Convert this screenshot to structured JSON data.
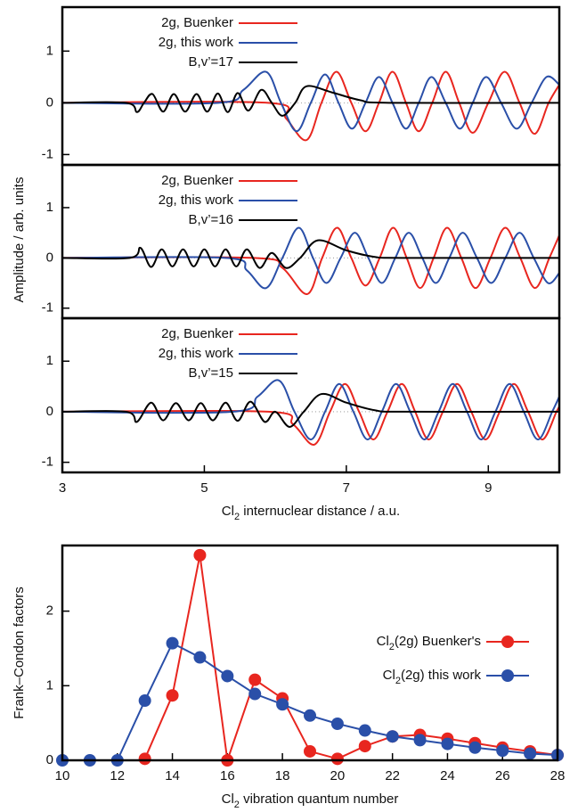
{
  "chart_data": [
    {
      "type": "line",
      "ylabel": "Amplitude / arb. units",
      "xlim": [
        3,
        10
      ],
      "ylim": [
        -1.2,
        1.85
      ],
      "yticks": [
        -1,
        0,
        1
      ],
      "legend": "top-left",
      "series": [
        {
          "name": "2g, Buenker",
          "color": "#e8261f",
          "x": [
            3,
            5.9,
            6.15,
            6.44,
            6.65,
            6.86,
            7.07,
            7.27,
            7.46,
            7.65,
            7.84,
            8.02,
            8.21,
            8.4,
            8.59,
            8.78,
            9.0,
            9.23,
            9.44,
            9.65,
            9.85,
            10
          ],
          "values": [
            0,
            0,
            -0.3,
            -0.72,
            0,
            0.6,
            0,
            -0.55,
            0,
            0.6,
            0,
            -0.55,
            0,
            0.6,
            0,
            -0.58,
            0,
            0.6,
            0,
            -0.6,
            0,
            0.35
          ]
        },
        {
          "name": "2g, this work",
          "color": "#2a4fa8",
          "x": [
            3,
            5.2,
            5.55,
            5.87,
            6.08,
            6.3,
            6.5,
            6.7,
            6.89,
            7.08,
            7.27,
            7.46,
            7.65,
            7.84,
            8.02,
            8.2,
            8.4,
            8.6,
            8.78,
            8.97,
            9.18,
            9.4,
            9.61,
            9.82,
            10
          ],
          "values": [
            0,
            0,
            0.25,
            0.6,
            0,
            -0.55,
            0,
            0.55,
            0,
            -0.5,
            0,
            0.5,
            0,
            -0.5,
            0,
            0.5,
            0,
            -0.5,
            0,
            0.5,
            0,
            -0.5,
            0,
            0.5,
            0.35
          ]
        },
        {
          "name": "B,v’=17",
          "color": "#000000",
          "x": [
            3,
            3.9,
            4.05,
            4.15,
            4.27,
            4.42,
            4.57,
            4.73,
            4.89,
            5.04,
            5.19,
            5.33,
            5.47,
            5.62,
            5.8,
            5.95,
            6.1,
            6.28,
            6.44,
            6.8,
            7.2,
            7.6,
            10
          ],
          "values": [
            0,
            0,
            -0.18,
            0,
            0.17,
            -0.17,
            0.17,
            -0.17,
            0.17,
            -0.17,
            0.18,
            -0.18,
            0.19,
            -0.15,
            0.25,
            0,
            -0.25,
            0,
            0.32,
            0.2,
            0.05,
            0,
            0
          ]
        }
      ]
    },
    {
      "type": "line",
      "xlim": [
        3,
        10
      ],
      "ylim": [
        -1.2,
        1.85
      ],
      "yticks": [
        -1,
        0,
        1
      ],
      "legend": "top-left",
      "series": [
        {
          "name": "2g, Buenker",
          "color": "#e8261f",
          "x": [
            3,
            5.7,
            6.1,
            6.45,
            6.66,
            6.87,
            7.07,
            7.27,
            7.47,
            7.66,
            7.85,
            8.04,
            8.23,
            8.42,
            8.62,
            8.82,
            9.03,
            9.24,
            9.45,
            9.66,
            9.86,
            10
          ],
          "values": [
            0,
            0,
            -0.2,
            -0.72,
            0,
            0.6,
            0,
            -0.55,
            0,
            0.6,
            0,
            -0.6,
            0,
            0.6,
            0,
            -0.6,
            0,
            0.6,
            0,
            -0.6,
            0,
            0.45
          ]
        },
        {
          "name": "2g, this work",
          "color": "#2a4fa8",
          "x": [
            3,
            5.3,
            5.6,
            5.87,
            6.1,
            6.33,
            6.53,
            6.72,
            6.92,
            7.12,
            7.31,
            7.5,
            7.69,
            7.88,
            8.07,
            8.26,
            8.45,
            8.64,
            8.84,
            9.04,
            9.24,
            9.44,
            9.64,
            9.84,
            10
          ],
          "values": [
            0,
            0,
            -0.25,
            -0.6,
            0,
            0.6,
            0,
            -0.5,
            0,
            0.5,
            0,
            -0.5,
            0,
            0.5,
            0,
            -0.5,
            0,
            0.5,
            0,
            -0.5,
            0,
            0.5,
            0,
            -0.5,
            -0.3
          ]
        },
        {
          "name": "B,v’=16",
          "color": "#000000",
          "x": [
            3,
            3.95,
            4.1,
            4.25,
            4.4,
            4.55,
            4.7,
            4.85,
            5.0,
            5.15,
            5.3,
            5.45,
            5.6,
            5.78,
            5.95,
            6.15,
            6.35,
            6.6,
            7.0,
            7.4,
            7.8,
            10
          ],
          "values": [
            0,
            0,
            0.2,
            -0.18,
            0.17,
            -0.17,
            0.17,
            -0.17,
            0.17,
            -0.17,
            0.17,
            -0.17,
            0.17,
            -0.2,
            0.1,
            -0.2,
            0,
            0.35,
            0.15,
            0.02,
            0,
            0
          ]
        }
      ]
    },
    {
      "type": "line",
      "xlabel": [
        "Cl",
        "2",
        " internuclear distance / a.u."
      ],
      "xlim": [
        3,
        10
      ],
      "ylim": [
        -1.2,
        1.85
      ],
      "xticks": [
        3,
        5,
        7,
        9
      ],
      "yticks": [
        -1,
        0,
        1
      ],
      "legend": "top-left",
      "series": [
        {
          "name": "2g, Buenker",
          "color": "#e8261f",
          "x": [
            3,
            5.9,
            6.25,
            6.55,
            6.77,
            6.98,
            7.18,
            7.38,
            7.58,
            7.78,
            7.97,
            8.16,
            8.36,
            8.56,
            8.76,
            8.96,
            9.16,
            9.36,
            9.56,
            9.76,
            9.96,
            10
          ],
          "values": [
            0,
            0,
            -0.25,
            -0.65,
            0,
            0.55,
            0,
            -0.55,
            0,
            0.55,
            0,
            -0.55,
            0,
            0.55,
            0,
            -0.55,
            0,
            0.55,
            0,
            -0.55,
            0,
            0.1
          ]
        },
        {
          "name": "2g, this work",
          "color": "#2a4fa8",
          "x": [
            3,
            5.4,
            5.75,
            6.05,
            6.27,
            6.5,
            6.7,
            6.9,
            7.1,
            7.3,
            7.5,
            7.7,
            7.9,
            8.1,
            8.3,
            8.5,
            8.7,
            8.9,
            9.1,
            9.3,
            9.5,
            9.7,
            9.9,
            10
          ],
          "values": [
            0,
            0,
            0.3,
            0.62,
            0,
            -0.55,
            0,
            0.55,
            0,
            -0.55,
            0,
            0.55,
            0,
            -0.55,
            0,
            0.55,
            0,
            -0.55,
            0,
            0.55,
            0,
            -0.55,
            0,
            0.3
          ]
        },
        {
          "name": "B,v’=15",
          "color": "#000000",
          "x": [
            3,
            3.9,
            4.05,
            4.25,
            4.42,
            4.6,
            4.78,
            4.95,
            5.12,
            5.3,
            5.47,
            5.65,
            5.85,
            6.0,
            6.2,
            6.4,
            6.65,
            7.0,
            7.4,
            7.8,
            10
          ],
          "values": [
            0,
            0,
            -0.2,
            0.18,
            -0.17,
            0.17,
            -0.17,
            0.17,
            -0.17,
            0.18,
            -0.18,
            0.2,
            -0.2,
            0,
            -0.3,
            0,
            0.35,
            0.18,
            0.03,
            0,
            0
          ]
        }
      ]
    },
    {
      "type": "scatter-line",
      "xlabel": [
        "Cl",
        "2",
        " vibration quantum number"
      ],
      "ylabel": "Frank–Condon factors",
      "xlim": [
        10,
        28
      ],
      "ylim": [
        0,
        2.88
      ],
      "xticks": [
        10,
        12,
        14,
        16,
        18,
        20,
        22,
        24,
        26,
        28
      ],
      "yticks": [
        0,
        1,
        2
      ],
      "legend": "right",
      "series": [
        {
          "name": [
            "Cl",
            "2",
            "(2g) Buenker's"
          ],
          "color": "#e8261f",
          "x": [
            13,
            14,
            15,
            16,
            17,
            18,
            19,
            20,
            21,
            22,
            23,
            24,
            25,
            26,
            27,
            28
          ],
          "values": [
            0.02,
            0.87,
            2.75,
            0,
            1.08,
            0.83,
            0.12,
            0.02,
            0.19,
            0.32,
            0.34,
            0.29,
            0.23,
            0.17,
            0.12,
            0.07
          ]
        },
        {
          "name": [
            "Cl",
            "2",
            "(2g) this work"
          ],
          "color": "#2a4fa8",
          "x": [
            10,
            11,
            12,
            13,
            14,
            15,
            16,
            17,
            18,
            19,
            20,
            21,
            22,
            23,
            24,
            25,
            26,
            27,
            28
          ],
          "values": [
            0,
            0,
            0,
            0.8,
            1.57,
            1.38,
            1.13,
            0.89,
            0.75,
            0.6,
            0.49,
            0.4,
            0.32,
            0.27,
            0.22,
            0.17,
            0.13,
            0.09,
            0.07
          ]
        }
      ]
    }
  ]
}
